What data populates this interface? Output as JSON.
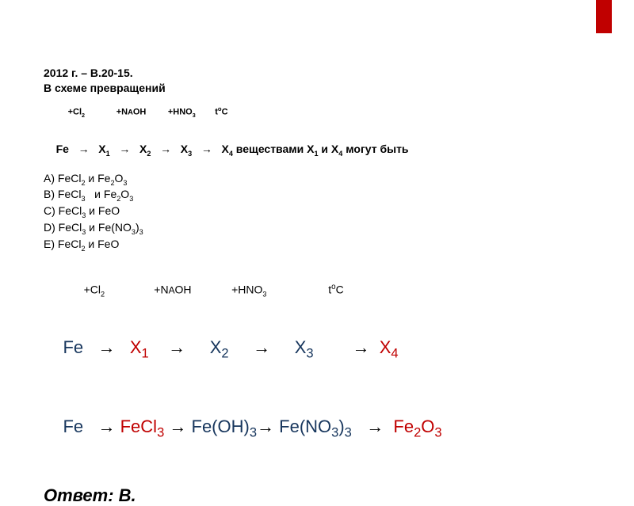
{
  "accent_color": "#c00000",
  "navy_color": "#17365d",
  "black_color": "#000000",
  "header": "2012 г. – В.20-15.",
  "subheader": "В схеме превращений",
  "small_cond": {
    "c1": "+Cl",
    "c1sub": "2",
    "c2": "+N",
    "c2small": "A",
    "c2b": "OH",
    "c3": "+HNO",
    "c3sub": "3",
    "c4": "t",
    "c4sup": "o",
    "c4b": "C"
  },
  "small_scheme": {
    "fe": "Fe",
    "arrow": "→",
    "x1": "X",
    "x2": "X",
    "x3": "X",
    "x4": "X",
    "tail": " веществами X",
    "tail2": " и X",
    "tail3": " могут быть"
  },
  "options": {
    "a": "A) FeCl",
    "a2": " и Fe",
    "a3": "O",
    "b": "B) FeCl",
    "b2": "   и Fe",
    "b3": "O",
    "c": "C) FeCl",
    "c2": " и FeO",
    "d": "D) FeCl",
    "d2": " и Fe(NO",
    "d3": ")",
    "e": "E) FeCl",
    "e2": " и FeO"
  },
  "big_cond": {
    "c1": "+Cl",
    "c2": "+N",
    "c2small": "A",
    "c2b": "OH",
    "c3": "+HNO",
    "c4": "t",
    "c4sup": "o",
    "c4b": "C"
  },
  "big_scheme": {
    "fe": "Fe",
    "arrow": "→",
    "x": "X"
  },
  "result": {
    "fe": "Fe",
    "arrow": "→",
    "fecl3": "FeCl",
    "feoh3": "Fe(OH)",
    "feno3": "Fe(NO",
    "feno3b": ")",
    "fe2o3a": "Fe",
    "fe2o3b": "O"
  },
  "answer": "Ответ: В."
}
